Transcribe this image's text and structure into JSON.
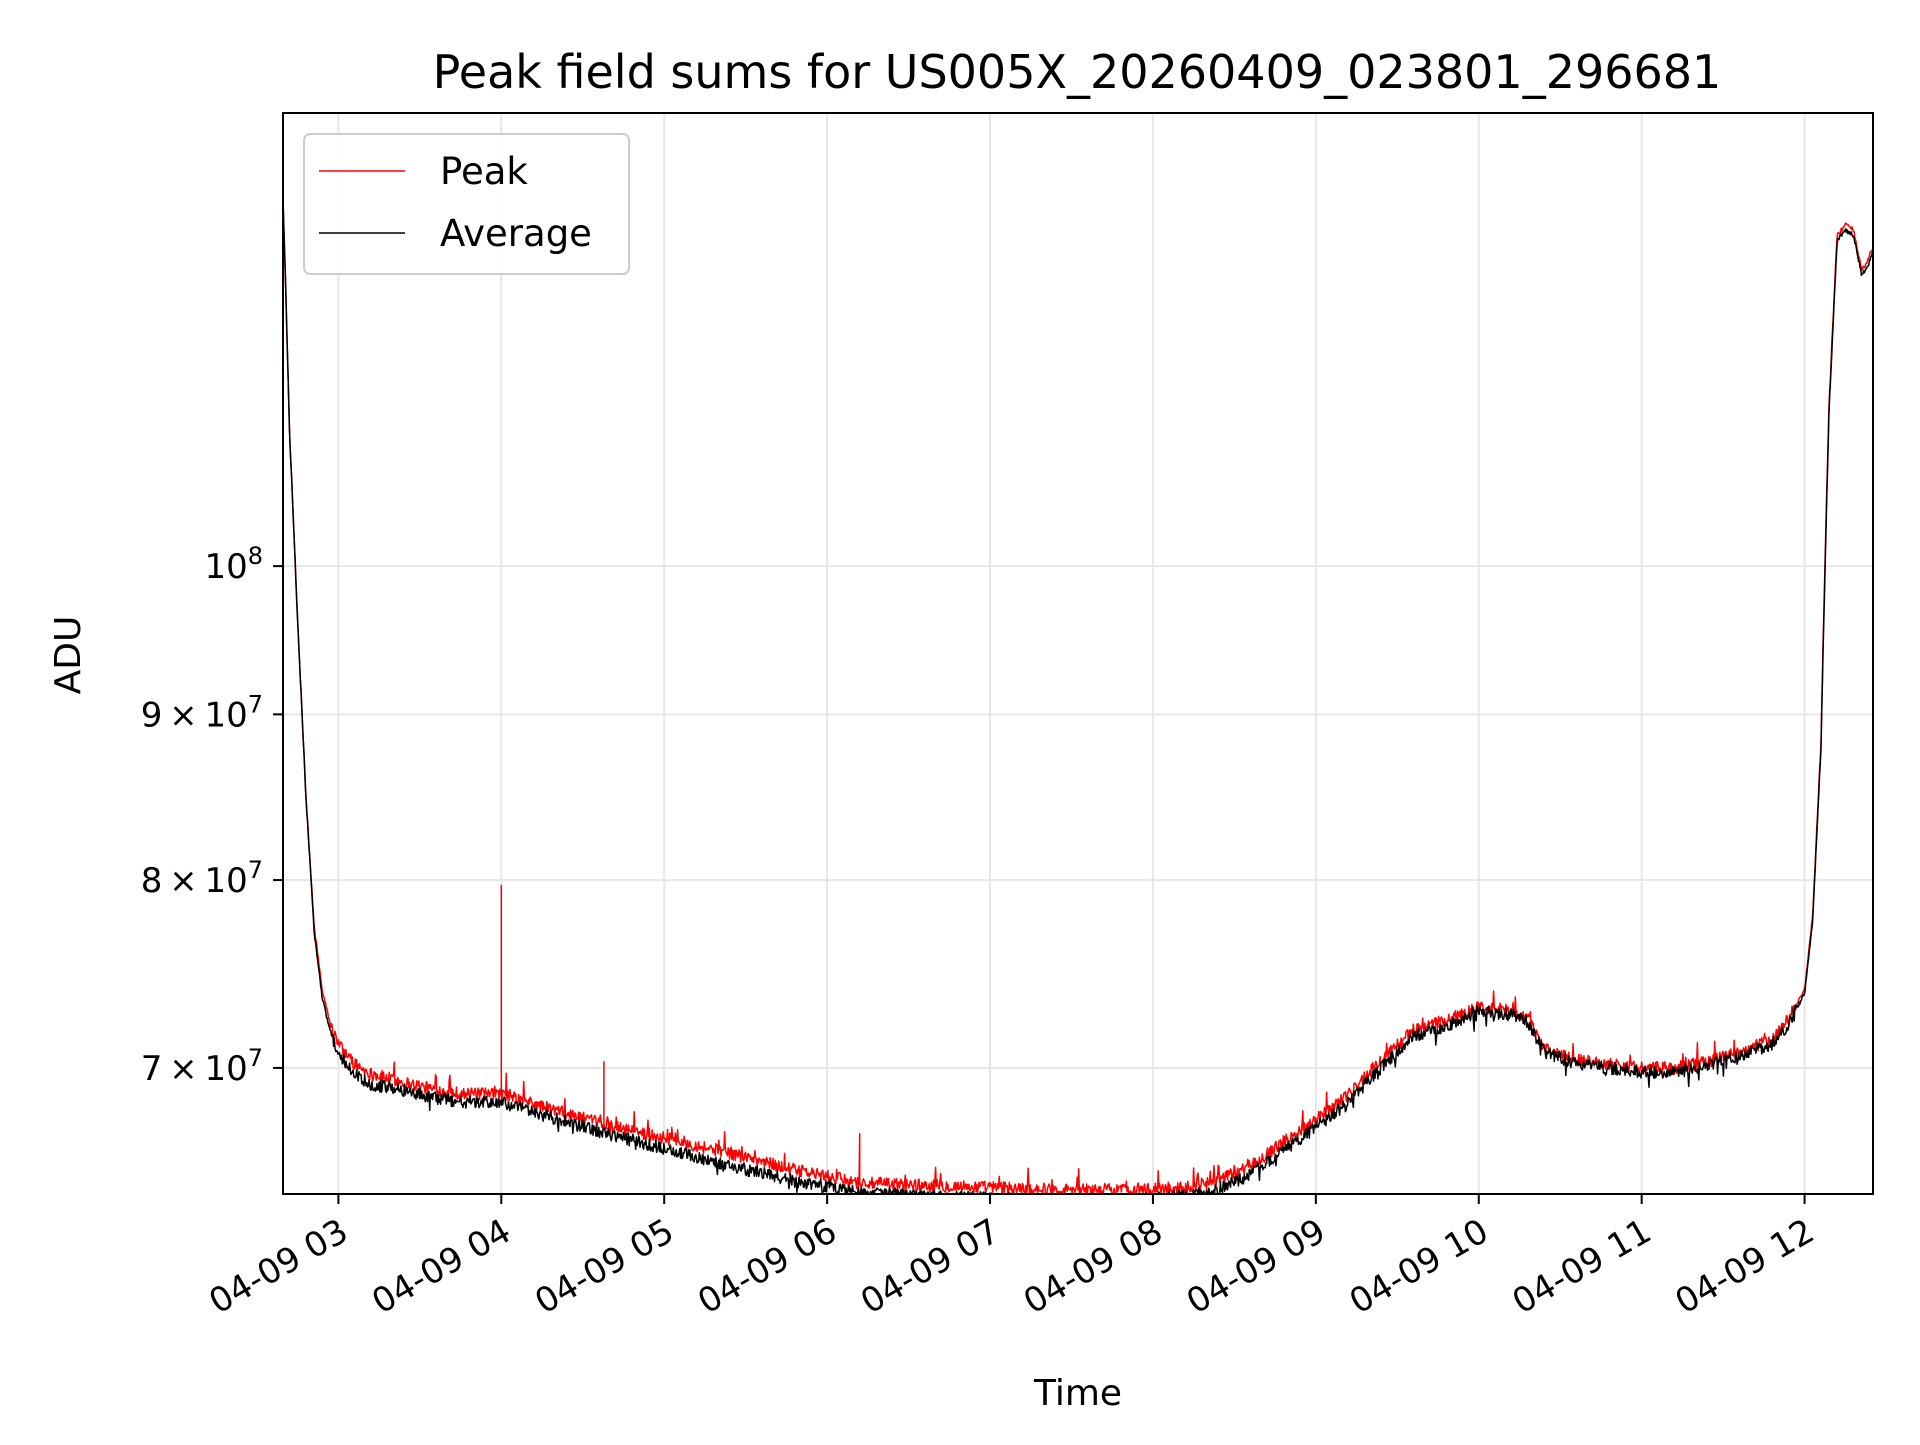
{
  "chart_data": {
    "type": "line",
    "title": "Peak field sums for US005X_20260409_023801_296681",
    "xlabel": "Time",
    "ylabel": "ADU",
    "yscale": "log",
    "xlim": [
      2.66,
      12.42
    ],
    "ylim": [
      64000000,
      138000000
    ],
    "x_unit": "hour of 2026-04-09",
    "x_ticks": [
      {
        "value": 3,
        "label": "04-09 03"
      },
      {
        "value": 4,
        "label": "04-09 04"
      },
      {
        "value": 5,
        "label": "04-09 05"
      },
      {
        "value": 6,
        "label": "04-09 06"
      },
      {
        "value": 7,
        "label": "04-09 07"
      },
      {
        "value": 8,
        "label": "04-09 08"
      },
      {
        "value": 9,
        "label": "04-09 09"
      },
      {
        "value": 10,
        "label": "04-09 10"
      },
      {
        "value": 11,
        "label": "04-09 11"
      },
      {
        "value": 12,
        "label": "04-09 12"
      }
    ],
    "y_ticks": [
      {
        "value": 70000000,
        "mantissa": "7",
        "exp": "7",
        "kind": "coef"
      },
      {
        "value": 80000000,
        "mantissa": "8",
        "exp": "7",
        "kind": "coef"
      },
      {
        "value": 90000000,
        "mantissa": "9",
        "exp": "7",
        "kind": "coef"
      },
      {
        "value": 100000000,
        "mantissa": "10",
        "exp": "8",
        "kind": "pow"
      }
    ],
    "grid": true,
    "legend_position": "top-left",
    "series": [
      {
        "name": "Peak",
        "color": "#ff0000",
        "x": [
          2.66,
          2.7,
          2.75,
          2.8,
          2.85,
          2.9,
          2.95,
          3.0,
          3.1,
          3.2,
          3.4,
          3.6,
          3.8,
          4.0,
          4.3,
          4.6,
          5.0,
          5.4,
          5.8,
          6.2,
          6.6,
          7.0,
          7.4,
          7.8,
          8.0,
          8.2,
          8.4,
          8.6,
          8.8,
          9.0,
          9.2,
          9.4,
          9.6,
          9.8,
          10.0,
          10.2,
          10.3,
          10.4,
          10.6,
          10.8,
          11.0,
          11.2,
          11.4,
          11.6,
          11.8,
          11.9,
          12.0,
          12.05,
          12.1,
          12.15,
          12.2,
          12.25,
          12.3,
          12.35,
          12.38,
          12.42
        ],
        "y": [
          130000000,
          110000000,
          96000000,
          85000000,
          77500000,
          74000000,
          72200000,
          71200000,
          70200000,
          69700000,
          69300000,
          68900000,
          68700000,
          68700000,
          68000000,
          67300000,
          66600000,
          65900000,
          65100000,
          64500000,
          64400000,
          64300000,
          64200000,
          64200000,
          64200000,
          64300000,
          64600000,
          65300000,
          66400000,
          67500000,
          68700000,
          70400000,
          71900000,
          72400000,
          73100000,
          72900000,
          72500000,
          71000000,
          70400000,
          70200000,
          70000000,
          70000000,
          70300000,
          70800000,
          71400000,
          72500000,
          74000000,
          78000000,
          88000000,
          112000000,
          126500000,
          127500000,
          127000000,
          123500000,
          124000000,
          125500000
        ]
      },
      {
        "name": "Average",
        "color": "#000000",
        "x": [
          2.66,
          2.7,
          2.75,
          2.8,
          2.85,
          2.9,
          2.95,
          3.0,
          3.1,
          3.2,
          3.4,
          3.6,
          3.8,
          4.0,
          4.3,
          4.6,
          5.0,
          5.4,
          5.8,
          6.2,
          6.6,
          7.0,
          7.4,
          7.8,
          8.0,
          8.2,
          8.4,
          8.6,
          8.8,
          9.0,
          9.2,
          9.4,
          9.6,
          9.8,
          10.0,
          10.2,
          10.3,
          10.4,
          10.6,
          10.8,
          11.0,
          11.2,
          11.4,
          11.6,
          11.8,
          11.9,
          12.0,
          12.05,
          12.1,
          12.15,
          12.2,
          12.25,
          12.3,
          12.35,
          12.38,
          12.42
        ],
        "y": [
          130000000,
          110000000,
          96000000,
          85000000,
          77200000,
          73600000,
          71800000,
          70700000,
          69700000,
          69200000,
          68900000,
          68500000,
          68300000,
          68300000,
          67600000,
          66900000,
          66100000,
          65300000,
          64600000,
          64100000,
          63900000,
          63800000,
          63700000,
          63700000,
          63800000,
          63900000,
          64200000,
          64900000,
          66000000,
          67100000,
          68300000,
          70000000,
          71600000,
          72100000,
          72900000,
          72700000,
          72300000,
          70800000,
          70200000,
          70000000,
          69800000,
          69800000,
          70100000,
          70600000,
          71200000,
          72200000,
          73800000,
          77700000,
          87600000,
          111500000,
          126000000,
          127000000,
          126500000,
          123000000,
          123500000,
          125000000
        ]
      }
    ],
    "annotations": [
      {
        "series": "Peak",
        "x": 4.0,
        "y": 79700000,
        "note": "spike"
      },
      {
        "series": "Peak",
        "x": 4.63,
        "y": 70300000,
        "note": "spike"
      },
      {
        "series": "Peak",
        "x": 6.2,
        "y": 66800000,
        "note": "spike"
      }
    ]
  }
}
